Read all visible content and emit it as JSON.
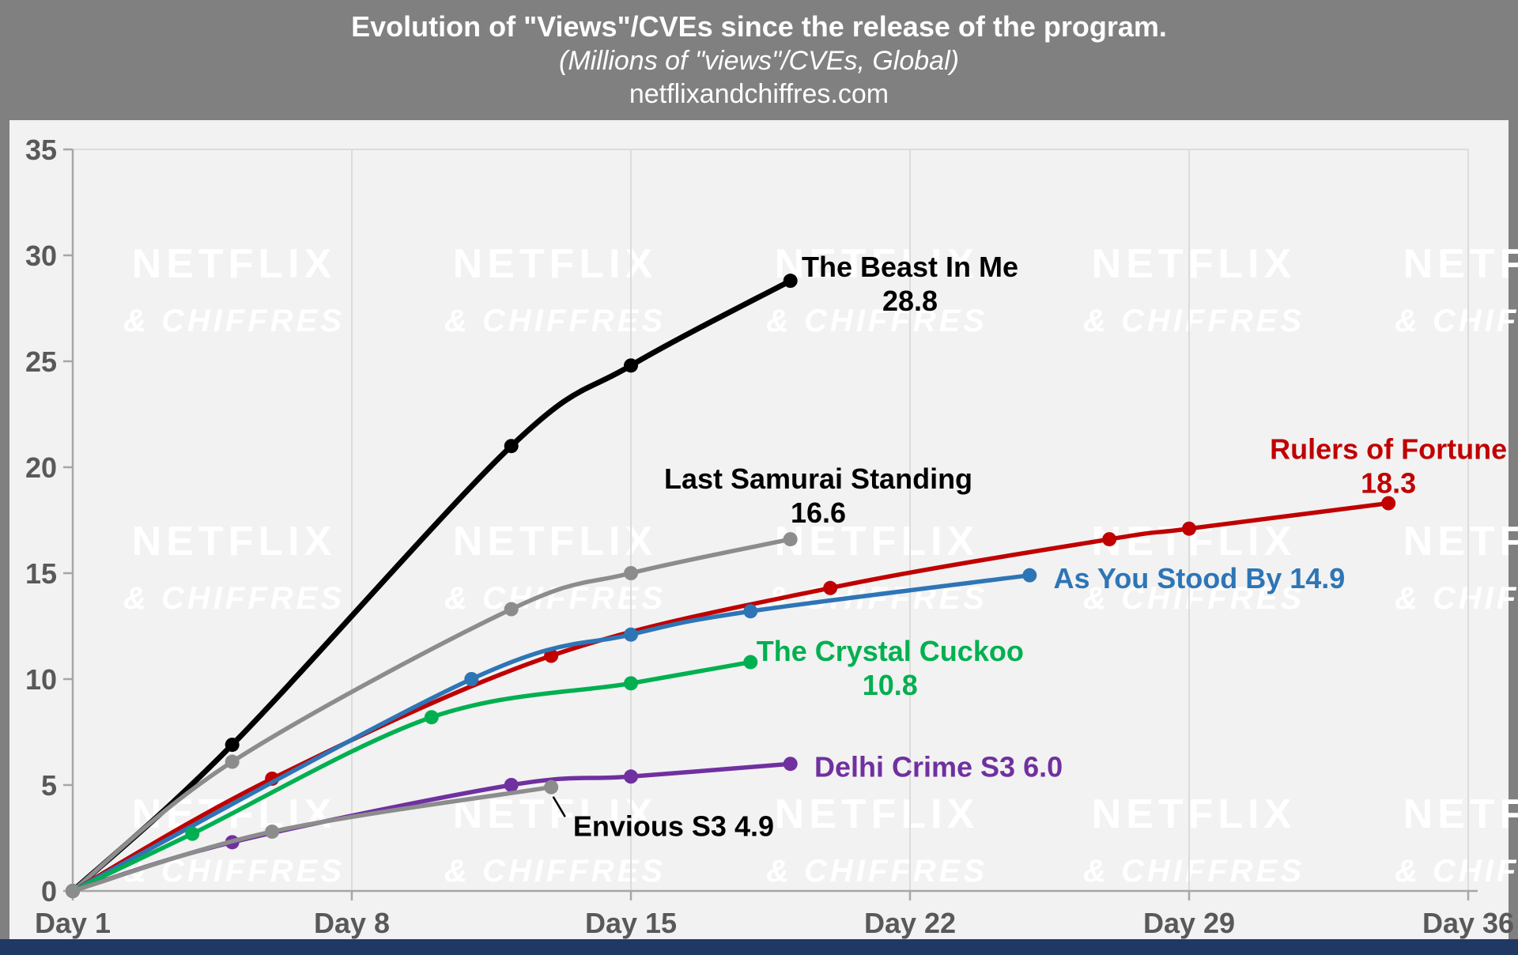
{
  "header": {
    "title": "Evolution of \"Views\"/CVEs since the release of the program.",
    "subtitle": "(Millions of \"views\"/CVEs, Global)",
    "source": "netflixandchiffres.com"
  },
  "watermark": {
    "line1": "NETFLIX",
    "line2": "& CHIFFRES",
    "color": "#FFFFFF"
  },
  "chart_data": {
    "type": "line",
    "title": "Evolution of \"Views\"/CVEs since the release of the program.",
    "subtitle": "(Millions of \"views\"/CVEs, Global)",
    "source": "netflixandchiffres.com",
    "xlim": [
      1,
      36
    ],
    "ylim": [
      0,
      35
    ],
    "x_ticks": [
      1,
      8,
      15,
      22,
      29,
      36
    ],
    "x_tick_labels": [
      "Day 1",
      "Day 8",
      "Day 15",
      "Day 22",
      "Day 29",
      "Day 36"
    ],
    "y_ticks": [
      0,
      5,
      10,
      15,
      20,
      25,
      30,
      35
    ],
    "grid": "vertical",
    "legend": "inline-labels",
    "series": [
      {
        "name": "The Beast In Me",
        "color": "#000000",
        "width": 7,
        "final_value": 28.8,
        "points": [
          [
            1,
            0
          ],
          [
            5,
            6.9
          ],
          [
            12,
            21.0
          ],
          [
            15,
            24.8
          ],
          [
            19,
            28.8
          ]
        ],
        "label": {
          "lines": [
            "The Beast In Me",
            "28.8"
          ],
          "x_day": 22.0,
          "y_value": 29.0,
          "anchor": "middle",
          "color": "#000000"
        }
      },
      {
        "name": "Last Samurai Standing",
        "color": "#8C8C8C",
        "width": 5.5,
        "final_value": 16.6,
        "points": [
          [
            1,
            0
          ],
          [
            5,
            6.1
          ],
          [
            12,
            13.3
          ],
          [
            15,
            15.0
          ],
          [
            19,
            16.6
          ]
        ],
        "label": {
          "lines": [
            "Last Samurai Standing",
            "16.6"
          ],
          "x_day": 19.7,
          "y_value": 19.0,
          "anchor": "middle",
          "color": "#000000"
        }
      },
      {
        "name": "Rulers of Fortune",
        "color": "#C00000",
        "width": 5.5,
        "final_value": 18.3,
        "points": [
          [
            1,
            0
          ],
          [
            6,
            5.3
          ],
          [
            13,
            11.1
          ],
          [
            20,
            14.3
          ],
          [
            27,
            16.6
          ],
          [
            29,
            17.1
          ],
          [
            34,
            18.3
          ]
        ],
        "label": {
          "lines": [
            "Rulers of Fortune",
            "18.3"
          ],
          "x_day": 34.0,
          "y_value": 20.4,
          "anchor": "middle",
          "color": "#C00000"
        }
      },
      {
        "name": "As You Stood By",
        "color": "#2E75B6",
        "width": 5.5,
        "final_value": 14.9,
        "points": [
          [
            1,
            0
          ],
          [
            11,
            10.0
          ],
          [
            15,
            12.1
          ],
          [
            18,
            13.2
          ],
          [
            25,
            14.9
          ]
        ],
        "label": {
          "lines": [
            "As You Stood By 14.9"
          ],
          "x_day": 25.6,
          "y_value": 14.3,
          "anchor": "start",
          "color": "#2E75B6"
        }
      },
      {
        "name": "The Crystal Cuckoo",
        "color": "#00B050",
        "width": 5.5,
        "final_value": 10.8,
        "points": [
          [
            1,
            0
          ],
          [
            4,
            2.7
          ],
          [
            10,
            8.2
          ],
          [
            15,
            9.8
          ],
          [
            18,
            10.8
          ]
        ],
        "label": {
          "lines": [
            "The Crystal Cuckoo",
            "10.8"
          ],
          "x_day": 21.5,
          "y_value": 10.85,
          "anchor": "middle",
          "color": "#00B050"
        }
      },
      {
        "name": "Delhi Crime S3",
        "color": "#7030A0",
        "width": 5.5,
        "final_value": 6.0,
        "points": [
          [
            1,
            0
          ],
          [
            5,
            2.3
          ],
          [
            12,
            5.0
          ],
          [
            15,
            5.4
          ],
          [
            19,
            6.0
          ]
        ],
        "label": {
          "lines": [
            "Delhi Crime S3 6.0"
          ],
          "x_day": 19.6,
          "y_value": 5.4,
          "anchor": "start",
          "color": "#7030A0"
        }
      },
      {
        "name": "Envious S3",
        "color": "#8C8C8C",
        "width": 5.5,
        "final_value": 4.9,
        "points": [
          [
            1,
            0
          ],
          [
            6,
            2.8
          ],
          [
            13,
            4.9
          ]
        ],
        "label": {
          "lines": [
            "Envious S3 4.9"
          ],
          "x_day": 13.55,
          "y_value": 2.6,
          "anchor": "start",
          "color": "#000000"
        },
        "annotation_line": {
          "from": [
            13.05,
            4.45
          ],
          "to": [
            13.35,
            3.5
          ]
        }
      }
    ]
  }
}
